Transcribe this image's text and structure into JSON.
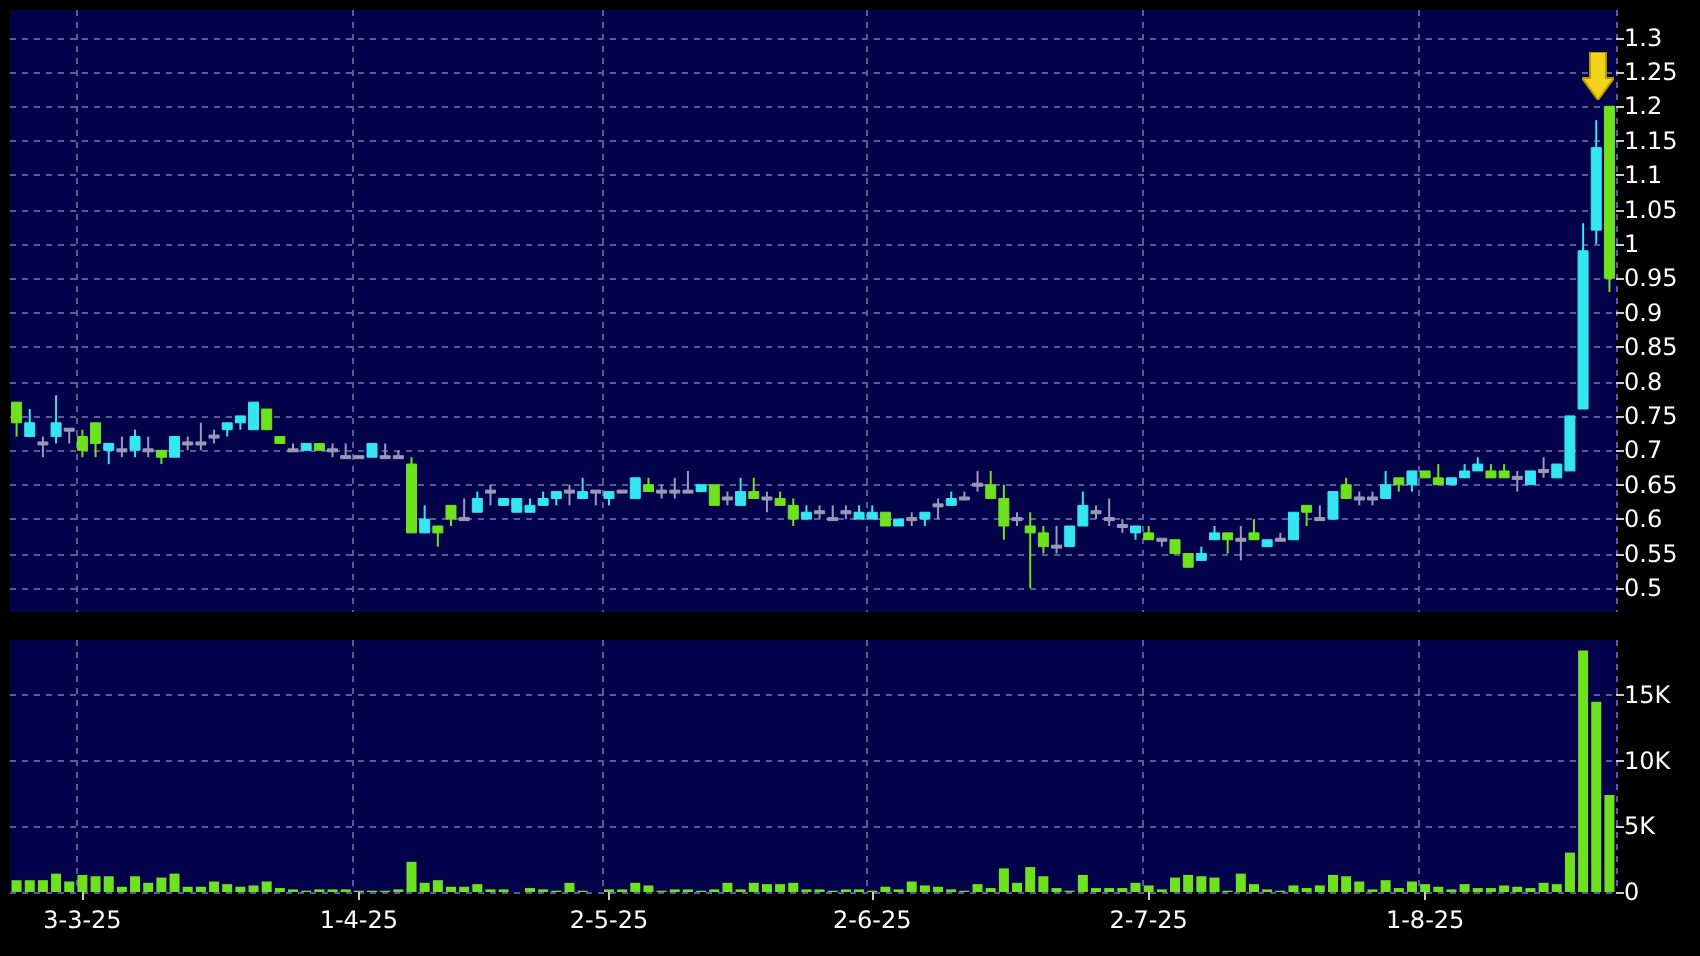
{
  "chart_data": [
    {
      "type": "candlestick",
      "categories": [
        null,
        null,
        null,
        null,
        null,
        null,
        null,
        null,
        null,
        null,
        null,
        null,
        null,
        null,
        null,
        null,
        null,
        null,
        null,
        null,
        null,
        null,
        null,
        null,
        null,
        null,
        null,
        null,
        null,
        null,
        null,
        null,
        null,
        null,
        null,
        null,
        null,
        null,
        null,
        null,
        null,
        null,
        null,
        null,
        null,
        null,
        null,
        null,
        null,
        null,
        null,
        null,
        null,
        null,
        null,
        null,
        null,
        null,
        null,
        null,
        null,
        null,
        null,
        null,
        null,
        null,
        null,
        null,
        null,
        null,
        null,
        null,
        null,
        null,
        null,
        null,
        null,
        null,
        null,
        null,
        null,
        null,
        null,
        null,
        null,
        null,
        null,
        null,
        null,
        null,
        null,
        null,
        null,
        null,
        null,
        null,
        null,
        null,
        null,
        null,
        null,
        null,
        null,
        null,
        null,
        null,
        null,
        null,
        null,
        null,
        null,
        null,
        null,
        null,
        null,
        null,
        null,
        null,
        null,
        null,
        null,
        null
      ],
      "ohlc": [
        [
          0.77,
          0.77,
          0.72,
          0.74
        ],
        [
          0.72,
          0.76,
          0.72,
          0.74
        ],
        [
          0.71,
          0.72,
          0.69,
          0.71
        ],
        [
          0.72,
          0.78,
          0.71,
          0.74
        ],
        [
          0.73,
          0.73,
          0.71,
          0.73
        ],
        [
          0.72,
          0.73,
          0.69,
          0.7
        ],
        [
          0.74,
          0.74,
          0.69,
          0.71
        ],
        [
          0.7,
          0.71,
          0.68,
          0.71
        ],
        [
          0.7,
          0.72,
          0.69,
          0.7
        ],
        [
          0.7,
          0.73,
          0.69,
          0.72
        ],
        [
          0.7,
          0.72,
          0.69,
          0.7
        ],
        [
          0.7,
          0.7,
          0.68,
          0.69
        ],
        [
          0.69,
          0.72,
          0.69,
          0.72
        ],
        [
          0.71,
          0.72,
          0.7,
          0.71
        ],
        [
          0.71,
          0.74,
          0.7,
          0.71
        ],
        [
          0.72,
          0.73,
          0.71,
          0.72
        ],
        [
          0.73,
          0.74,
          0.72,
          0.74
        ],
        [
          0.74,
          0.75,
          0.73,
          0.75
        ],
        [
          0.73,
          0.77,
          0.73,
          0.77
        ],
        [
          0.76,
          0.76,
          0.73,
          0.73
        ],
        [
          0.72,
          0.72,
          0.71,
          0.71
        ],
        [
          0.7,
          0.71,
          0.7,
          0.7
        ],
        [
          0.7,
          0.71,
          0.7,
          0.71
        ],
        [
          0.71,
          0.71,
          0.7,
          0.7
        ],
        [
          0.7,
          0.71,
          0.69,
          0.7
        ],
        [
          0.69,
          0.71,
          0.69,
          0.69
        ],
        [
          0.69,
          0.69,
          0.69,
          0.69
        ],
        [
          0.69,
          0.71,
          0.69,
          0.71
        ],
        [
          0.69,
          0.71,
          0.69,
          0.69
        ],
        [
          0.69,
          0.7,
          0.69,
          0.69
        ],
        [
          0.68,
          0.69,
          0.58,
          0.58
        ],
        [
          0.58,
          0.62,
          0.58,
          0.6
        ],
        [
          0.59,
          0.59,
          0.56,
          0.58
        ],
        [
          0.62,
          0.62,
          0.59,
          0.6
        ],
        [
          0.6,
          0.63,
          0.6,
          0.6
        ],
        [
          0.61,
          0.64,
          0.61,
          0.63
        ],
        [
          0.64,
          0.65,
          0.62,
          0.64
        ],
        [
          0.62,
          0.63,
          0.62,
          0.63
        ],
        [
          0.61,
          0.63,
          0.61,
          0.63
        ],
        [
          0.61,
          0.63,
          0.61,
          0.62
        ],
        [
          0.62,
          0.64,
          0.62,
          0.63
        ],
        [
          0.63,
          0.64,
          0.62,
          0.64
        ],
        [
          0.64,
          0.65,
          0.62,
          0.64
        ],
        [
          0.63,
          0.66,
          0.63,
          0.64
        ],
        [
          0.64,
          0.64,
          0.62,
          0.64
        ],
        [
          0.63,
          0.64,
          0.62,
          0.64
        ],
        [
          0.64,
          0.64,
          0.64,
          0.64
        ],
        [
          0.63,
          0.66,
          0.63,
          0.66
        ],
        [
          0.65,
          0.66,
          0.64,
          0.64
        ],
        [
          0.64,
          0.65,
          0.63,
          0.64
        ],
        [
          0.64,
          0.66,
          0.63,
          0.64
        ],
        [
          0.64,
          0.67,
          0.64,
          0.64
        ],
        [
          0.64,
          0.65,
          0.64,
          0.65
        ],
        [
          0.65,
          0.65,
          0.62,
          0.62
        ],
        [
          0.63,
          0.64,
          0.62,
          0.63
        ],
        [
          0.62,
          0.66,
          0.62,
          0.64
        ],
        [
          0.64,
          0.66,
          0.63,
          0.63
        ],
        [
          0.63,
          0.64,
          0.61,
          0.63
        ],
        [
          0.63,
          0.64,
          0.62,
          0.62
        ],
        [
          0.62,
          0.63,
          0.59,
          0.6
        ],
        [
          0.6,
          0.62,
          0.6,
          0.61
        ],
        [
          0.61,
          0.62,
          0.6,
          0.61
        ],
        [
          0.6,
          0.62,
          0.6,
          0.6
        ],
        [
          0.61,
          0.62,
          0.6,
          0.61
        ],
        [
          0.6,
          0.62,
          0.6,
          0.61
        ],
        [
          0.6,
          0.62,
          0.6,
          0.61
        ],
        [
          0.61,
          0.61,
          0.59,
          0.59
        ],
        [
          0.59,
          0.6,
          0.59,
          0.6
        ],
        [
          0.6,
          0.61,
          0.59,
          0.6
        ],
        [
          0.6,
          0.61,
          0.59,
          0.61
        ],
        [
          0.62,
          0.63,
          0.6,
          0.62
        ],
        [
          0.62,
          0.64,
          0.62,
          0.63
        ],
        [
          0.63,
          0.64,
          0.63,
          0.63
        ],
        [
          0.65,
          0.67,
          0.64,
          0.65
        ],
        [
          0.65,
          0.67,
          0.63,
          0.63
        ],
        [
          0.63,
          0.65,
          0.57,
          0.59
        ],
        [
          0.6,
          0.61,
          0.59,
          0.6
        ],
        [
          0.59,
          0.61,
          0.5,
          0.58
        ],
        [
          0.58,
          0.59,
          0.55,
          0.56
        ],
        [
          0.56,
          0.59,
          0.55,
          0.56
        ],
        [
          0.56,
          0.59,
          0.56,
          0.59
        ],
        [
          0.59,
          0.64,
          0.59,
          0.62
        ],
        [
          0.61,
          0.62,
          0.6,
          0.61
        ],
        [
          0.6,
          0.63,
          0.59,
          0.6
        ],
        [
          0.59,
          0.6,
          0.58,
          0.59
        ],
        [
          0.58,
          0.59,
          0.57,
          0.59
        ],
        [
          0.58,
          0.59,
          0.57,
          0.57
        ],
        [
          0.57,
          0.57,
          0.56,
          0.57
        ],
        [
          0.57,
          0.57,
          0.55,
          0.55
        ],
        [
          0.55,
          0.55,
          0.53,
          0.53
        ],
        [
          0.54,
          0.56,
          0.54,
          0.55
        ],
        [
          0.57,
          0.59,
          0.57,
          0.58
        ],
        [
          0.58,
          0.58,
          0.55,
          0.57
        ],
        [
          0.57,
          0.59,
          0.54,
          0.57
        ],
        [
          0.58,
          0.6,
          0.57,
          0.57
        ],
        [
          0.56,
          0.57,
          0.56,
          0.57
        ],
        [
          0.57,
          0.58,
          0.57,
          0.57
        ],
        [
          0.57,
          0.61,
          0.57,
          0.61
        ],
        [
          0.62,
          0.62,
          0.59,
          0.61
        ],
        [
          0.6,
          0.62,
          0.6,
          0.6
        ],
        [
          0.6,
          0.64,
          0.6,
          0.64
        ],
        [
          0.65,
          0.66,
          0.63,
          0.63
        ],
        [
          0.63,
          0.64,
          0.62,
          0.63
        ],
        [
          0.63,
          0.64,
          0.62,
          0.63
        ],
        [
          0.63,
          0.67,
          0.63,
          0.65
        ],
        [
          0.66,
          0.66,
          0.64,
          0.65
        ],
        [
          0.65,
          0.67,
          0.64,
          0.67
        ],
        [
          0.67,
          0.67,
          0.66,
          0.66
        ],
        [
          0.66,
          0.68,
          0.65,
          0.65
        ],
        [
          0.65,
          0.66,
          0.65,
          0.66
        ],
        [
          0.66,
          0.68,
          0.66,
          0.67
        ],
        [
          0.67,
          0.69,
          0.67,
          0.68
        ],
        [
          0.67,
          0.68,
          0.66,
          0.66
        ],
        [
          0.67,
          0.68,
          0.66,
          0.66
        ],
        [
          0.66,
          0.67,
          0.64,
          0.66
        ],
        [
          0.65,
          0.67,
          0.65,
          0.67
        ],
        [
          0.67,
          0.69,
          0.66,
          0.67
        ],
        [
          0.66,
          0.68,
          0.66,
          0.68
        ],
        [
          0.67,
          0.75,
          0.67,
          0.75
        ],
        [
          0.76,
          1.03,
          0.76,
          0.99
        ],
        [
          1.02,
          1.18,
          1.0,
          1.14
        ],
        [
          1.2,
          1.2,
          0.93,
          0.95
        ]
      ],
      "colors": [
        "#6ee21e",
        "#33e6f2",
        "#9a9ab8",
        "#33e6f2",
        "#9a9ab8",
        "#6ee21e",
        "#6ee21e",
        "#33e6f2",
        "#9a9ab8",
        "#33e6f2",
        "#9a9ab8",
        "#6ee21e",
        "#33e6f2",
        "#9a9ab8",
        "#9a9ab8",
        "#9a9ab8",
        "#33e6f2",
        "#33e6f2",
        "#33e6f2",
        "#6ee21e",
        "#6ee21e",
        "#9a9ab8",
        "#33e6f2",
        "#6ee21e",
        "#9a9ab8",
        "#9a9ab8",
        "#9a9ab8",
        "#33e6f2",
        "#9a9ab8",
        "#9a9ab8",
        "#6ee21e",
        "#33e6f2",
        "#6ee21e",
        "#6ee21e",
        "#9a9ab8",
        "#33e6f2",
        "#9a9ab8",
        "#33e6f2",
        "#33e6f2",
        "#33e6f2",
        "#33e6f2",
        "#33e6f2",
        "#9a9ab8",
        "#33e6f2",
        "#9a9ab8",
        "#33e6f2",
        "#9a9ab8",
        "#33e6f2",
        "#6ee21e",
        "#9a9ab8",
        "#9a9ab8",
        "#9a9ab8",
        "#33e6f2",
        "#6ee21e",
        "#9a9ab8",
        "#33e6f2",
        "#6ee21e",
        "#9a9ab8",
        "#6ee21e",
        "#6ee21e",
        "#33e6f2",
        "#9a9ab8",
        "#9a9ab8",
        "#9a9ab8",
        "#33e6f2",
        "#33e6f2",
        "#6ee21e",
        "#33e6f2",
        "#9a9ab8",
        "#33e6f2",
        "#9a9ab8",
        "#33e6f2",
        "#9a9ab8",
        "#9a9ab8",
        "#6ee21e",
        "#6ee21e",
        "#9a9ab8",
        "#6ee21e",
        "#6ee21e",
        "#9a9ab8",
        "#33e6f2",
        "#33e6f2",
        "#9a9ab8",
        "#9a9ab8",
        "#9a9ab8",
        "#33e6f2",
        "#6ee21e",
        "#9a9ab8",
        "#6ee21e",
        "#6ee21e",
        "#33e6f2",
        "#33e6f2",
        "#6ee21e",
        "#9a9ab8",
        "#6ee21e",
        "#33e6f2",
        "#9a9ab8",
        "#33e6f2",
        "#6ee21e",
        "#9a9ab8",
        "#33e6f2",
        "#6ee21e",
        "#9a9ab8",
        "#9a9ab8",
        "#33e6f2",
        "#6ee21e",
        "#33e6f2",
        "#6ee21e",
        "#6ee21e",
        "#33e6f2",
        "#33e6f2",
        "#33e6f2",
        "#6ee21e",
        "#6ee21e",
        "#9a9ab8",
        "#33e6f2",
        "#9a9ab8",
        "#33e6f2",
        "#33e6f2",
        "#33e6f2",
        "#33e6f2",
        "#6ee21e"
      ],
      "ylim": [
        0.465,
        1.34
      ],
      "yticks": [
        0.5,
        0.55,
        0.6,
        0.65,
        0.7,
        0.75,
        0.8,
        0.85,
        0.9,
        0.95,
        1,
        1.05,
        1.1,
        1.15,
        1.2,
        1.25,
        1.3
      ],
      "grid": true,
      "tick_labels": "y"
    },
    {
      "type": "bar",
      "categories": [
        null,
        null,
        null,
        null,
        null,
        "3-3-25",
        null,
        null,
        null,
        null,
        null,
        null,
        null,
        null,
        null,
        null,
        null,
        null,
        null,
        null,
        null,
        null,
        null,
        null,
        null,
        null,
        "1-4-25",
        null,
        null,
        null,
        null,
        null,
        null,
        null,
        null,
        null,
        null,
        null,
        null,
        null,
        null,
        null,
        null,
        null,
        null,
        "2-5-25",
        null,
        null,
        null,
        null,
        null,
        null,
        null,
        null,
        null,
        null,
        null,
        null,
        null,
        null,
        null,
        null,
        null,
        null,
        null,
        "2-6-25",
        null,
        null,
        null,
        null,
        null,
        null,
        null,
        null,
        null,
        null,
        null,
        null,
        null,
        null,
        null,
        null,
        null,
        null,
        null,
        null,
        "2-7-25",
        null,
        null,
        null,
        null,
        null,
        null,
        null,
        null,
        null,
        null,
        null,
        null,
        null,
        null,
        null,
        null,
        null,
        null,
        null,
        null,
        "1-8-25",
        null,
        null,
        null,
        null,
        null,
        null,
        null,
        null,
        null,
        null,
        null,
        null,
        null,
        null
      ],
      "values": [
        900,
        900,
        900,
        1400,
        800,
        1300,
        1200,
        1200,
        400,
        1200,
        700,
        1100,
        1400,
        400,
        400,
        800,
        600,
        400,
        500,
        800,
        300,
        200,
        100,
        200,
        200,
        200,
        100,
        100,
        100,
        200,
        2300,
        700,
        900,
        400,
        400,
        600,
        200,
        200,
        0,
        300,
        200,
        100,
        700,
        100,
        0,
        200,
        200,
        700,
        500,
        100,
        200,
        200,
        100,
        200,
        700,
        200,
        700,
        600,
        600,
        700,
        200,
        200,
        100,
        200,
        200,
        100,
        400,
        200,
        800,
        500,
        400,
        200,
        100,
        600,
        300,
        1800,
        700,
        1900,
        1200,
        300,
        100,
        1300,
        300,
        300,
        300,
        700,
        500,
        200,
        1100,
        1300,
        1200,
        1100,
        100,
        1400,
        600,
        200,
        100,
        500,
        300,
        500,
        1300,
        1200,
        800,
        200,
        900,
        300,
        800,
        600,
        400,
        200,
        600,
        300,
        300,
        500,
        400,
        300,
        700,
        600,
        3000,
        18400,
        14500,
        7400
      ],
      "color": "#6ee21e",
      "ylim": [
        0,
        19200
      ],
      "yticks": [
        0,
        {
          "value": 5000,
          "label": "5K"
        },
        {
          "value": 10000,
          "label": "10K"
        },
        {
          "value": 15000,
          "label": "15K"
        }
      ],
      "grid": true
    }
  ]
}
